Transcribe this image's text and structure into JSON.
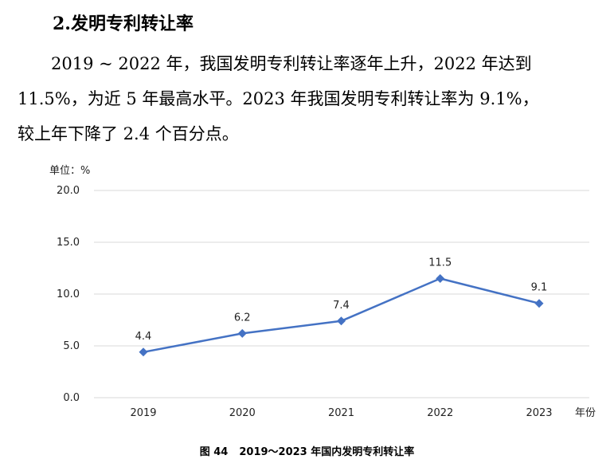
{
  "section": {
    "title": "2.发明专利转让率"
  },
  "paragraph": {
    "line1": "2019 ~ 2022 年，我国发明专利转让率逐年上升，2022 年达到",
    "line2": "11.5%，为近 5 年最高水平。2023 年我国发明专利转让率为 9.1%，",
    "line3": "较上年下降了 2.4 个百分点。"
  },
  "chart_data": {
    "type": "line",
    "unit_label": "单位：%",
    "xlabel": "年份",
    "ylabel": "",
    "categories": [
      "2019",
      "2020",
      "2021",
      "2022",
      "2023"
    ],
    "series": [
      {
        "values": [
          4.4,
          6.2,
          7.4,
          11.5,
          9.1
        ],
        "color": "#4472C4"
      }
    ],
    "data_labels": [
      "4.4",
      "6.2",
      "7.4",
      "11.5",
      "9.1"
    ],
    "ylim": [
      0,
      20
    ],
    "yticks": [
      "0.0",
      "5.0",
      "10.0",
      "15.0",
      "20.0"
    ],
    "grid": true,
    "legend": "none"
  },
  "caption": {
    "number": "图 44",
    "text": "2019～2023 年国内发明专利转让率"
  }
}
